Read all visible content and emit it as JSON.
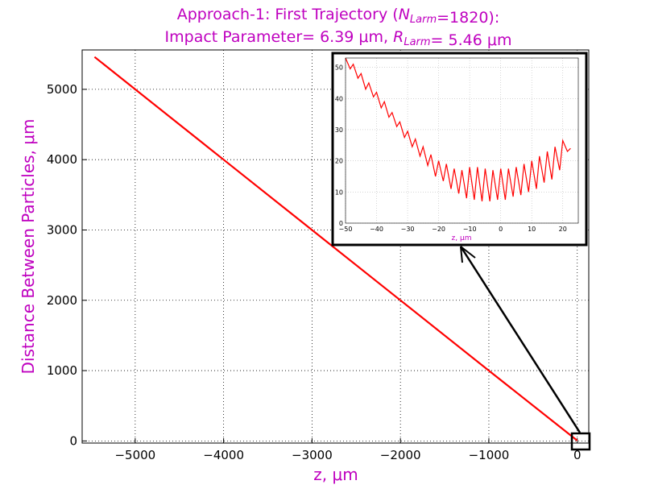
{
  "chart_data": {
    "type": "line",
    "title_line1": "Approach-1: First Trajectory (N_Larm=1820):",
    "title_line2": "Impact Parameter= 6.39 μm, R_Larm= 5.46 μm",
    "xlabel": "z, μm",
    "ylabel": "Distance Between Particles, μm",
    "xlim": [
      -5600,
      130
    ],
    "ylim": [
      -30,
      5560
    ],
    "x_ticks": [
      -5000,
      -4000,
      -3000,
      -2000,
      -1000,
      0
    ],
    "x_tick_labels": [
      "−5000",
      "−4000",
      "−3000",
      "−2000",
      "−1000",
      "0"
    ],
    "y_ticks": [
      0,
      1000,
      2000,
      3000,
      4000,
      5000
    ],
    "y_tick_labels": [
      "0",
      "1000",
      "2000",
      "3000",
      "4000",
      "5000"
    ],
    "grid": true,
    "line_color": "#ff0000",
    "series": [
      {
        "x": [
          -5460,
          -4000,
          -3000,
          -2000,
          -1000,
          0
        ],
        "y": [
          5460,
          4000,
          3000,
          2000,
          1000,
          6
        ]
      }
    ],
    "inset": {
      "xlim": [
        -50,
        25
      ],
      "ylim": [
        0,
        53
      ],
      "x_ticks": [
        -50,
        -40,
        -30,
        -20,
        -10,
        0,
        10,
        20
      ],
      "x_tick_labels": [
        "−50",
        "−40",
        "−30",
        "−20",
        "−10",
        "0",
        "10",
        "20"
      ],
      "y_ticks": [
        0,
        10,
        20,
        30,
        40,
        50
      ],
      "y_tick_labels": [
        "0",
        "10",
        "20",
        "30",
        "40",
        "50"
      ],
      "xlabel": "z, μm",
      "grid": true,
      "line_color": "#ff0000",
      "x": [
        -50,
        -48.5,
        -47.5,
        -46,
        -45,
        -43.5,
        -42.5,
        -41,
        -40,
        -38.5,
        -37.5,
        -36,
        -35,
        -33.5,
        -32.5,
        -31,
        -30,
        -28.5,
        -27.5,
        -26,
        -25,
        -23.5,
        -22.5,
        -21,
        -20,
        -18.5,
        -17.5,
        -16,
        -15,
        -13.5,
        -12.5,
        -11,
        -10,
        -8.5,
        -7.5,
        -6,
        -5,
        -3.5,
        -2.5,
        -1,
        0,
        1.5,
        2.5,
        4,
        5,
        6.5,
        7.5,
        9,
        10,
        11.5,
        12.5,
        14,
        15,
        16.5,
        17.5,
        19,
        20,
        21.5,
        22.5
      ],
      "y": [
        53,
        49.5,
        51,
        46.5,
        48,
        43,
        45,
        40.5,
        42,
        37,
        39,
        34,
        35.5,
        31,
        32.5,
        27.5,
        29.5,
        24.5,
        27,
        21.5,
        24.5,
        18.5,
        22,
        15,
        20,
        13.5,
        19,
        11,
        17.5,
        9.5,
        17,
        8,
        18,
        7.5,
        18,
        7,
        17.5,
        7,
        17,
        7.5,
        17.5,
        7.5,
        17.5,
        8.5,
        18,
        9,
        19,
        10,
        20,
        11,
        21.5,
        13,
        23,
        14,
        24.5,
        17,
        26.5,
        23,
        24
      ]
    }
  },
  "arrow": {
    "from_data": [
      0,
      0
    ],
    "to_inset_label": "z, μm"
  }
}
